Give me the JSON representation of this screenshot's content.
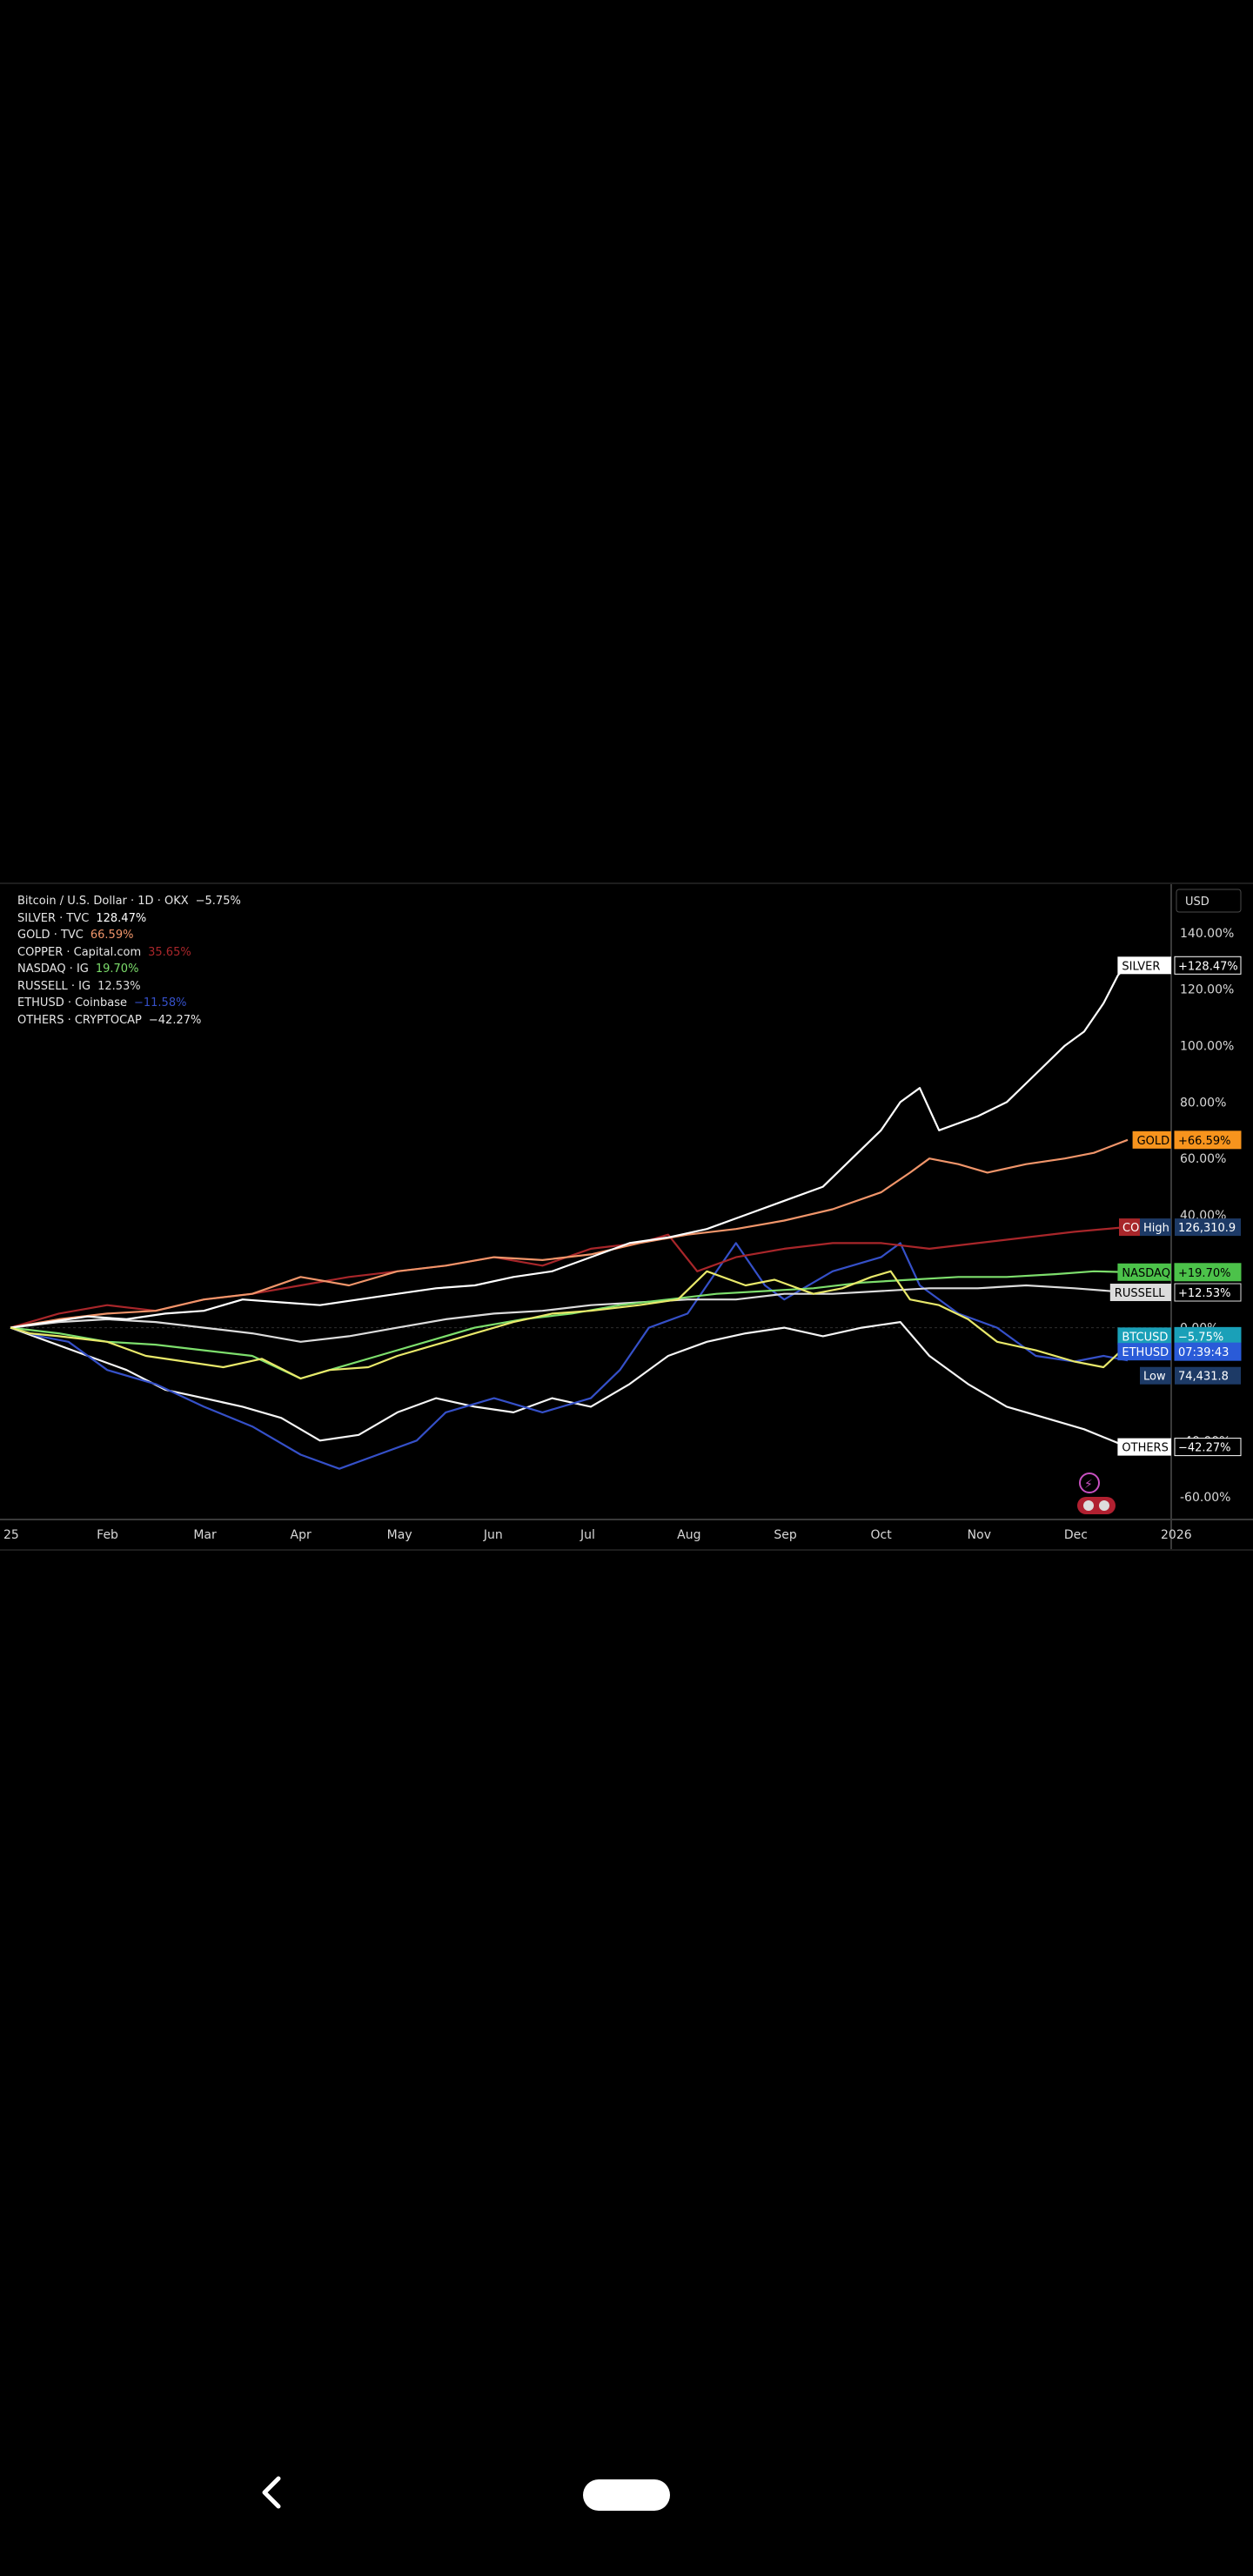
{
  "chart_data": {
    "type": "line",
    "y_unit": "percent change",
    "ylim": [
      -68,
      148
    ],
    "y_ticks": [
      "140.00%",
      "120.00%",
      "100.00%",
      "80.00%",
      "60.00%",
      "40.00%",
      "0.00%",
      "-40.00%",
      "-60.00%"
    ],
    "x_ticks": [
      "25",
      "Feb",
      "Mar",
      "Apr",
      "May",
      "Jun",
      "Jul",
      "Aug",
      "Sep",
      "Oct",
      "Nov",
      "Dec",
      "2026"
    ],
    "currency_button": "USD",
    "grid": false,
    "legend_position": "top-left",
    "series": [
      {
        "key": "btc",
        "name": "Bitcoin / U.S. Dollar · 1D · OKX",
        "value_text": "−5.75%",
        "color": "#e8e86a",
        "points": [
          [
            0,
            0
          ],
          [
            0.2,
            -2
          ],
          [
            0.5,
            -3
          ],
          [
            1,
            -5
          ],
          [
            1.4,
            -10
          ],
          [
            1.8,
            -12
          ],
          [
            2.2,
            -14
          ],
          [
            2.6,
            -11
          ],
          [
            3,
            -18
          ],
          [
            3.3,
            -15
          ],
          [
            3.7,
            -14
          ],
          [
            4,
            -10
          ],
          [
            4.4,
            -6
          ],
          [
            4.8,
            -2
          ],
          [
            5.2,
            2
          ],
          [
            5.6,
            5
          ],
          [
            6,
            6
          ],
          [
            6.5,
            8
          ],
          [
            6.9,
            10
          ],
          [
            7.2,
            20
          ],
          [
            7.6,
            15
          ],
          [
            7.9,
            17
          ],
          [
            8.3,
            12
          ],
          [
            8.6,
            14
          ],
          [
            8.9,
            18
          ],
          [
            9.1,
            20
          ],
          [
            9.3,
            10
          ],
          [
            9.6,
            8
          ],
          [
            9.9,
            3
          ],
          [
            10.2,
            -5
          ],
          [
            10.6,
            -8
          ],
          [
            11,
            -12
          ],
          [
            11.3,
            -14
          ],
          [
            11.55,
            -6
          ]
        ]
      },
      {
        "key": "silver",
        "name": "SILVER · TVC",
        "value_text": "128.47%",
        "color": "#ffffff",
        "points": [
          [
            0,
            0
          ],
          [
            0.4,
            2
          ],
          [
            0.8,
            4
          ],
          [
            1.2,
            3
          ],
          [
            1.6,
            5
          ],
          [
            2,
            6
          ],
          [
            2.4,
            10
          ],
          [
            2.8,
            9
          ],
          [
            3.2,
            8
          ],
          [
            3.6,
            10
          ],
          [
            4,
            12
          ],
          [
            4.4,
            14
          ],
          [
            4.8,
            15
          ],
          [
            5.2,
            18
          ],
          [
            5.6,
            20
          ],
          [
            6,
            25
          ],
          [
            6.4,
            30
          ],
          [
            6.8,
            32
          ],
          [
            7.2,
            35
          ],
          [
            7.6,
            40
          ],
          [
            8,
            45
          ],
          [
            8.4,
            50
          ],
          [
            8.7,
            60
          ],
          [
            9,
            70
          ],
          [
            9.2,
            80
          ],
          [
            9.4,
            85
          ],
          [
            9.6,
            70
          ],
          [
            10,
            75
          ],
          [
            10.3,
            80
          ],
          [
            10.6,
            90
          ],
          [
            10.9,
            100
          ],
          [
            11.1,
            105
          ],
          [
            11.3,
            115
          ],
          [
            11.45,
            125
          ],
          [
            11.55,
            128.5
          ]
        ]
      },
      {
        "key": "gold",
        "name": "GOLD · TVC",
        "value_text": "66.59%",
        "color": "#f0956a",
        "points": [
          [
            0,
            0
          ],
          [
            0.5,
            3
          ],
          [
            1,
            5
          ],
          [
            1.5,
            6
          ],
          [
            2,
            10
          ],
          [
            2.5,
            12
          ],
          [
            3,
            18
          ],
          [
            3.5,
            15
          ],
          [
            4,
            20
          ],
          [
            4.5,
            22
          ],
          [
            5,
            25
          ],
          [
            5.5,
            24
          ],
          [
            6,
            26
          ],
          [
            6.5,
            30
          ],
          [
            7,
            33
          ],
          [
            7.5,
            35
          ],
          [
            8,
            38
          ],
          [
            8.5,
            42
          ],
          [
            9,
            48
          ],
          [
            9.3,
            55
          ],
          [
            9.5,
            60
          ],
          [
            9.8,
            58
          ],
          [
            10.1,
            55
          ],
          [
            10.5,
            58
          ],
          [
            10.9,
            60
          ],
          [
            11.2,
            62
          ],
          [
            11.55,
            66.6
          ]
        ]
      },
      {
        "key": "copper",
        "name": "COPPER · Capital.com",
        "value_text": "35.65%",
        "color": "#a8262a",
        "points": [
          [
            0,
            0
          ],
          [
            0.5,
            5
          ],
          [
            1,
            8
          ],
          [
            1.5,
            6
          ],
          [
            2,
            10
          ],
          [
            2.5,
            12
          ],
          [
            3,
            15
          ],
          [
            3.5,
            18
          ],
          [
            4,
            20
          ],
          [
            4.5,
            22
          ],
          [
            5,
            25
          ],
          [
            5.5,
            22
          ],
          [
            6,
            28
          ],
          [
            6.5,
            30
          ],
          [
            6.8,
            33
          ],
          [
            7.1,
            20
          ],
          [
            7.5,
            25
          ],
          [
            8,
            28
          ],
          [
            8.5,
            30
          ],
          [
            9,
            30
          ],
          [
            9.5,
            28
          ],
          [
            10,
            30
          ],
          [
            10.5,
            32
          ],
          [
            11,
            34
          ],
          [
            11.55,
            35.7
          ]
        ]
      },
      {
        "key": "nasdaq",
        "name": "NASDAQ · IG",
        "value_text": "19.70%",
        "color": "#7dde6c",
        "points": [
          [
            0,
            0
          ],
          [
            0.5,
            -2
          ],
          [
            1,
            -5
          ],
          [
            1.5,
            -6
          ],
          [
            2,
            -8
          ],
          [
            2.5,
            -10
          ],
          [
            3,
            -18
          ],
          [
            3.3,
            -15
          ],
          [
            3.8,
            -10
          ],
          [
            4.3,
            -5
          ],
          [
            4.8,
            0
          ],
          [
            5.3,
            3
          ],
          [
            5.8,
            5
          ],
          [
            6.3,
            8
          ],
          [
            6.8,
            10
          ],
          [
            7.3,
            12
          ],
          [
            7.8,
            13
          ],
          [
            8.3,
            14
          ],
          [
            8.8,
            16
          ],
          [
            9.3,
            17
          ],
          [
            9.8,
            18
          ],
          [
            10.3,
            18
          ],
          [
            10.8,
            19
          ],
          [
            11.2,
            20
          ],
          [
            11.55,
            19.7
          ]
        ]
      },
      {
        "key": "russell",
        "name": "RUSSELL · IG",
        "value_text": "12.53%",
        "color": "#dcdcdc",
        "points": [
          [
            0,
            0
          ],
          [
            0.5,
            2
          ],
          [
            1,
            3
          ],
          [
            1.5,
            2
          ],
          [
            2,
            0
          ],
          [
            2.5,
            -2
          ],
          [
            3,
            -5
          ],
          [
            3.5,
            -3
          ],
          [
            4,
            0
          ],
          [
            4.5,
            3
          ],
          [
            5,
            5
          ],
          [
            5.5,
            6
          ],
          [
            6,
            8
          ],
          [
            6.5,
            9
          ],
          [
            7,
            10
          ],
          [
            7.5,
            10
          ],
          [
            8,
            12
          ],
          [
            8.5,
            12
          ],
          [
            9,
            13
          ],
          [
            9.5,
            14
          ],
          [
            10,
            14
          ],
          [
            10.5,
            15
          ],
          [
            11,
            14
          ],
          [
            11.55,
            12.5
          ]
        ]
      },
      {
        "key": "eth",
        "name": "ETHUSD · Coinbase",
        "value_text": "−11.58%",
        "color": "#3550c8",
        "points": [
          [
            0,
            0
          ],
          [
            0.3,
            -3
          ],
          [
            0.6,
            -5
          ],
          [
            1,
            -15
          ],
          [
            1.5,
            -20
          ],
          [
            2,
            -28
          ],
          [
            2.5,
            -35
          ],
          [
            3,
            -45
          ],
          [
            3.4,
            -50
          ],
          [
            3.8,
            -45
          ],
          [
            4.2,
            -40
          ],
          [
            4.5,
            -30
          ],
          [
            5,
            -25
          ],
          [
            5.5,
            -30
          ],
          [
            6,
            -25
          ],
          [
            6.3,
            -15
          ],
          [
            6.6,
            0
          ],
          [
            7,
            5
          ],
          [
            7.3,
            20
          ],
          [
            7.5,
            30
          ],
          [
            7.8,
            15
          ],
          [
            8,
            10
          ],
          [
            8.5,
            20
          ],
          [
            9,
            25
          ],
          [
            9.2,
            30
          ],
          [
            9.4,
            15
          ],
          [
            9.8,
            5
          ],
          [
            10.2,
            0
          ],
          [
            10.6,
            -10
          ],
          [
            11,
            -12
          ],
          [
            11.3,
            -10
          ],
          [
            11.55,
            -11.6
          ]
        ]
      },
      {
        "key": "others",
        "name": "OTHERS · CRYPTOCAP",
        "value_text": "−42.27%",
        "color": "#f5f5f5",
        "points": [
          [
            0,
            0
          ],
          [
            0.4,
            -5
          ],
          [
            0.8,
            -10
          ],
          [
            1.2,
            -15
          ],
          [
            1.6,
            -22
          ],
          [
            2,
            -25
          ],
          [
            2.4,
            -28
          ],
          [
            2.8,
            -32
          ],
          [
            3.2,
            -40
          ],
          [
            3.6,
            -38
          ],
          [
            4,
            -30
          ],
          [
            4.4,
            -25
          ],
          [
            4.8,
            -28
          ],
          [
            5.2,
            -30
          ],
          [
            5.6,
            -25
          ],
          [
            6,
            -28
          ],
          [
            6.4,
            -20
          ],
          [
            6.8,
            -10
          ],
          [
            7.2,
            -5
          ],
          [
            7.6,
            -2
          ],
          [
            8,
            0
          ],
          [
            8.4,
            -3
          ],
          [
            8.8,
            0
          ],
          [
            9.2,
            2
          ],
          [
            9.5,
            -10
          ],
          [
            9.9,
            -20
          ],
          [
            10.3,
            -28
          ],
          [
            10.7,
            -32
          ],
          [
            11.1,
            -36
          ],
          [
            11.55,
            -42.3
          ]
        ]
      }
    ],
    "price_tags": [
      {
        "label": "SILVER",
        "value": "+128.47%",
        "y": 128.47,
        "bg": "#ffffff",
        "fg": "#000000"
      },
      {
        "label": "GOLD",
        "value": "+66.59%",
        "y": 66.59,
        "bg": "#f7941d",
        "fg": "#000000"
      },
      {
        "label": "CO",
        "value": "",
        "y": 35.65,
        "bg": "#a8262a",
        "fg": "#ffffff"
      },
      {
        "label": "High",
        "value": "126,310.9",
        "y": 35.65,
        "bg": "#1d3a66",
        "fg": "#ffffff"
      },
      {
        "label": "NASDAQ",
        "value": "+19.70%",
        "y": 19.7,
        "bg": "#4cc24a",
        "fg": "#000000"
      },
      {
        "label": "RUSSELL",
        "value": "+12.53%",
        "y": 12.53,
        "bg": "#dcdcdc",
        "fg": "#000000"
      },
      {
        "label": "BTCUSD",
        "value": "−5.75%",
        "y": -3.0,
        "bg": "#1aa0b8",
        "fg": "#ffffff"
      },
      {
        "label": "ETHUSD",
        "value": "07:39:43",
        "y": -8.5,
        "bg": "#2a5bd8",
        "fg": "#ffffff"
      },
      {
        "label": "Low",
        "value": "74,431.8",
        "y": -17.0,
        "bg": "#1d3a66",
        "fg": "#ffffff"
      },
      {
        "label": "OTHERS",
        "value": "−42.27%",
        "y": -42.27,
        "bg": "#ffffff",
        "fg": "#000000"
      }
    ]
  }
}
